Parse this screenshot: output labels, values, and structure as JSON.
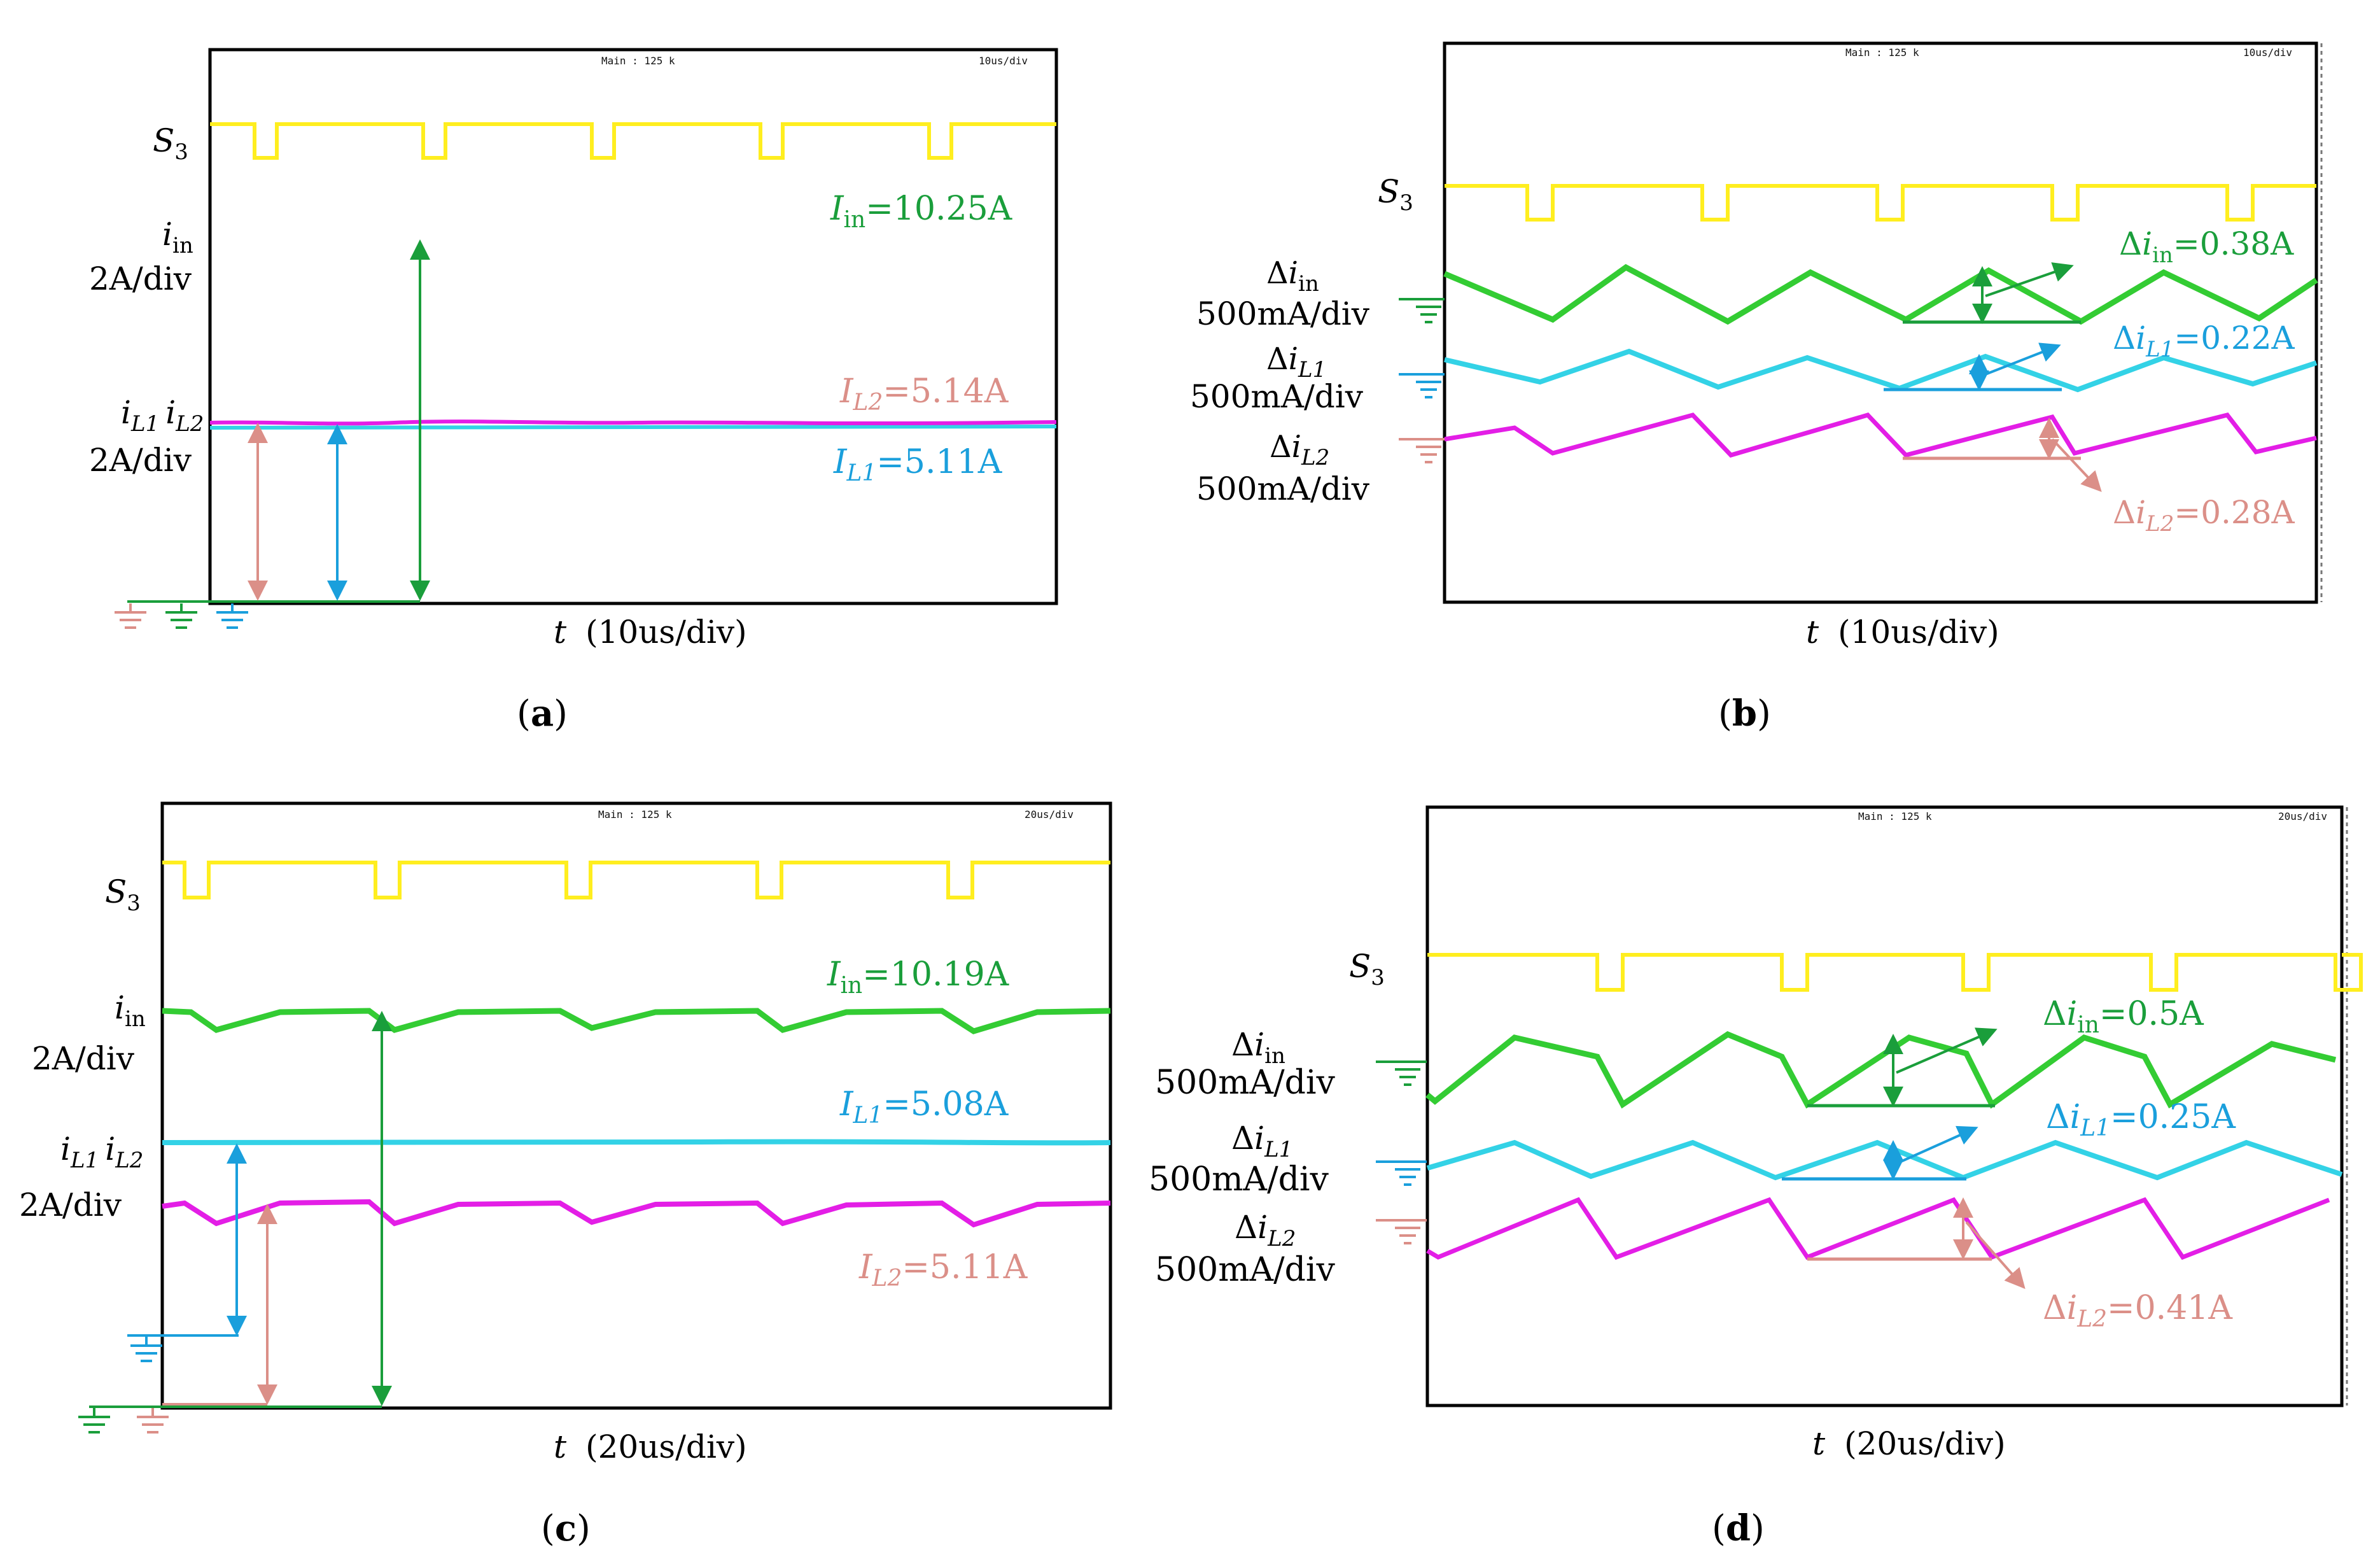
{
  "colors": {
    "s3": "#ffee1f",
    "iin": "#33cc33",
    "il1": "#33d2e6",
    "il2": "#e31ee6",
    "green_label": "#1a9e3b",
    "blue_label": "#1a9fdc",
    "salmon_label": "#db8f88",
    "frame": "#000000"
  },
  "panels": [
    {
      "id": "a",
      "caption_letter": "a",
      "caption_open": "(",
      "caption_close": ")",
      "header_main": "Main : 125 k",
      "header_div": "10us/div",
      "time_label_var": "t",
      "time_label_div": "(10us/div)",
      "ch1_label": {
        "base": "S",
        "sub": "3"
      },
      "ch2_label": {
        "base": "i",
        "sub": "in",
        "scale": "2A/div"
      },
      "ch3_label": {
        "base1": "i",
        "sub1": "L1",
        "base2": "i",
        "sub2": "L2",
        "scale": "2A/div"
      },
      "ann_in": {
        "base": "I",
        "sub": "in",
        "value": "=10.25A"
      },
      "ann_l2": {
        "base": "I",
        "sub": "L2",
        "value": "=5.14A"
      },
      "ann_l1": {
        "base": "I",
        "sub": "L1",
        "value": "=5.11A"
      }
    },
    {
      "id": "b",
      "caption_letter": "b",
      "caption_open": "(",
      "caption_close": ")",
      "header_main": "Main : 125 k",
      "header_div": "10us/div",
      "time_label_var": "t",
      "time_label_div": "(10us/div)",
      "ch1_label": {
        "base": "S",
        "sub": "3"
      },
      "ch2_label": {
        "delta": "Δ",
        "base": "i",
        "sub": "in",
        "scale": "500mA/div"
      },
      "ch3_label": {
        "delta": "Δ",
        "base": "i",
        "sub": "L1",
        "scale": "500mA/div"
      },
      "ch4_label": {
        "delta": "Δ",
        "base": "i",
        "sub": "L2",
        "scale": "500mA/div"
      },
      "ann_in": {
        "delta": "Δ",
        "base": "i",
        "sub": "in",
        "value": "=0.38A"
      },
      "ann_l1": {
        "delta": "Δ",
        "base": "i",
        "sub": "L1",
        "value": "=0.22A"
      },
      "ann_l2": {
        "delta": "Δ",
        "base": "i",
        "sub": "L2",
        "value": "=0.28A"
      }
    },
    {
      "id": "c",
      "caption_letter": "c",
      "caption_open": "(",
      "caption_close": ")",
      "header_main": "Main : 125 k",
      "header_div": "20us/div",
      "time_label_var": "t",
      "time_label_div": "(20us/div)",
      "ch1_label": {
        "base": "S",
        "sub": "3"
      },
      "ch2_label": {
        "base": "i",
        "sub": "in",
        "scale": "2A/div"
      },
      "ch3_label": {
        "base1": "i",
        "sub1": "L1",
        "base2": "i",
        "sub2": "L2",
        "scale": "2A/div"
      },
      "ann_in": {
        "base": "I",
        "sub": "in",
        "value": "=10.19A"
      },
      "ann_l1": {
        "base": "I",
        "sub": "L1",
        "value": "=5.08A"
      },
      "ann_l2": {
        "base": "I",
        "sub": "L2",
        "value": "=5.11A"
      }
    },
    {
      "id": "d",
      "caption_letter": "d",
      "caption_open": "(",
      "caption_close": ")",
      "header_main": "Main : 125 k",
      "header_div": "20us/div",
      "time_label_var": "t",
      "time_label_div": "(20us/div)",
      "ch1_label": {
        "base": "S",
        "sub": "3"
      },
      "ch2_label": {
        "delta": "Δ",
        "base": "i",
        "sub": "in",
        "scale": "500mA/div"
      },
      "ch3_label": {
        "delta": "Δ",
        "base": "i",
        "sub": "L1",
        "scale": "500mA/div"
      },
      "ch4_label": {
        "delta": "Δ",
        "base": "i",
        "sub": "L2",
        "scale": "500mA/div"
      },
      "ann_in": {
        "delta": "Δ",
        "base": "i",
        "sub": "in",
        "value": "=0.5A"
      },
      "ann_l1": {
        "delta": "Δ",
        "base": "i",
        "sub": "L1",
        "value": "=0.25A"
      },
      "ann_l2": {
        "delta": "Δ",
        "base": "i",
        "sub": "L2",
        "value": "=0.41A"
      }
    }
  ],
  "chart_data": [
    {
      "type": "line",
      "panel": "a",
      "title": "",
      "xlabel": "t (10us/div)",
      "series": [
        {
          "name": "S3",
          "waveform": "gate pulse train",
          "pulses_visible": 5
        },
        {
          "name": "i_in",
          "scale": "2A/div",
          "dc_value_A": 10.25
        },
        {
          "name": "i_L1",
          "scale": "2A/div",
          "dc_value_A": 5.11
        },
        {
          "name": "i_L2",
          "scale": "2A/div",
          "dc_value_A": 5.14
        }
      ]
    },
    {
      "type": "line",
      "panel": "b",
      "title": "",
      "xlabel": "t (10us/div)",
      "series": [
        {
          "name": "S3",
          "waveform": "gate pulse train",
          "pulses_visible": 5
        },
        {
          "name": "Δi_in",
          "scale": "500mA/div",
          "ripple_A": 0.38
        },
        {
          "name": "Δi_L1",
          "scale": "500mA/div",
          "ripple_A": 0.22
        },
        {
          "name": "Δi_L2",
          "scale": "500mA/div",
          "ripple_A": 0.28
        }
      ]
    },
    {
      "type": "line",
      "panel": "c",
      "title": "",
      "xlabel": "t (20us/div)",
      "series": [
        {
          "name": "S3",
          "waveform": "gate pulse train",
          "pulses_visible": 5
        },
        {
          "name": "i_in",
          "scale": "2A/div",
          "dc_value_A": 10.19
        },
        {
          "name": "i_L1",
          "scale": "2A/div",
          "dc_value_A": 5.08
        },
        {
          "name": "i_L2",
          "scale": "2A/div",
          "dc_value_A": 5.11
        }
      ]
    },
    {
      "type": "line",
      "panel": "d",
      "title": "",
      "xlabel": "t (20us/div)",
      "series": [
        {
          "name": "S3",
          "waveform": "gate pulse train",
          "pulses_visible": 5
        },
        {
          "name": "Δi_in",
          "scale": "500mA/div",
          "ripple_A": 0.5
        },
        {
          "name": "Δi_L1",
          "scale": "500mA/div",
          "ripple_A": 0.25
        },
        {
          "name": "Δi_L2",
          "scale": "500mA/div",
          "ripple_A": 0.41
        }
      ]
    }
  ]
}
